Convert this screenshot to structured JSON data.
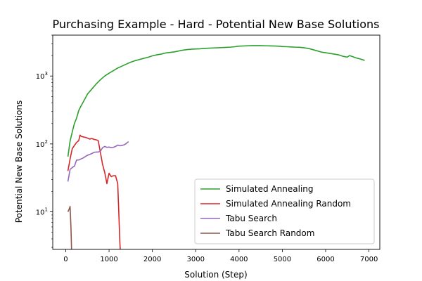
{
  "chart_data": {
    "type": "line",
    "title": "Purchasing Example - Hard - Potential New Base Solutions",
    "xlabel": "Solution (Step)",
    "ylabel": "Potential New Base Solutions",
    "xlim": [
      -300,
      7250
    ],
    "ylim": [
      2.8,
      4000
    ],
    "yscale": "log",
    "grid": false,
    "legend_position": "lower-right",
    "x_ticks": [
      0,
      1000,
      2000,
      3000,
      4000,
      5000,
      6000,
      7000
    ],
    "x_tick_labels": [
      "0",
      "1000",
      "2000",
      "3000",
      "4000",
      "5000",
      "6000",
      "7000"
    ],
    "y_ticks": [
      10,
      100,
      1000
    ],
    "series": [
      {
        "name": "Simulated Annealing",
        "color": "#2ca02c",
        "x": [
          50,
          100,
          150,
          200,
          250,
          300,
          350,
          400,
          450,
          500,
          600,
          700,
          800,
          900,
          1000,
          1100,
          1200,
          1300,
          1400,
          1500,
          1600,
          1700,
          1800,
          1900,
          2000,
          2100,
          2200,
          2300,
          2400,
          2500,
          2600,
          2700,
          2800,
          2900,
          3000,
          3100,
          3200,
          3300,
          3400,
          3500,
          3600,
          3700,
          3800,
          3900,
          4000,
          4100,
          4200,
          4300,
          4400,
          4500,
          4600,
          4700,
          4800,
          4900,
          5000,
          5100,
          5200,
          5300,
          5400,
          5500,
          5600,
          5700,
          5800,
          5900,
          6000,
          6100,
          6200,
          6300,
          6400,
          6500,
          6550,
          6600,
          6700,
          6800,
          6900
        ],
        "values": [
          65,
          110,
          150,
          200,
          240,
          310,
          360,
          410,
          470,
          540,
          640,
          760,
          880,
          1000,
          1100,
          1200,
          1310,
          1400,
          1500,
          1600,
          1680,
          1750,
          1820,
          1890,
          1980,
          2050,
          2100,
          2180,
          2220,
          2260,
          2330,
          2400,
          2450,
          2480,
          2500,
          2520,
          2550,
          2570,
          2590,
          2600,
          2620,
          2640,
          2660,
          2700,
          2750,
          2770,
          2790,
          2800,
          2800,
          2800,
          2790,
          2780,
          2770,
          2750,
          2720,
          2700,
          2680,
          2660,
          2650,
          2600,
          2550,
          2450,
          2350,
          2250,
          2200,
          2150,
          2100,
          2050,
          1950,
          1900,
          2000,
          1950,
          1850,
          1780,
          1700
        ]
      },
      {
        "name": "Simulated Annealing Random",
        "color": "#d62728",
        "x": [
          50,
          100,
          150,
          200,
          250,
          300,
          330,
          350,
          400,
          450,
          500,
          550,
          600,
          650,
          700,
          750,
          800,
          850,
          900,
          950,
          1000,
          1050,
          1100,
          1150,
          1200,
          1230,
          1250,
          1270
        ],
        "values": [
          40,
          60,
          85,
          95,
          105,
          112,
          135,
          130,
          127,
          125,
          122,
          118,
          120,
          117,
          115,
          112,
          75,
          50,
          38,
          26,
          37,
          33,
          34,
          34,
          26,
          8,
          3.5,
          2.0
        ]
      },
      {
        "name": "Tabu Search",
        "color": "#9467bd",
        "x": [
          50,
          100,
          150,
          200,
          250,
          300,
          350,
          400,
          450,
          500,
          550,
          600,
          650,
          700,
          750,
          800,
          850,
          900,
          950,
          1000,
          1050,
          1100,
          1150,
          1200,
          1250,
          1300,
          1350,
          1400,
          1450
        ],
        "values": [
          28,
          42,
          45,
          47,
          58,
          58,
          60,
          62,
          65,
          68,
          70,
          72,
          75,
          76,
          76,
          78,
          88,
          92,
          89,
          90,
          88,
          89,
          92,
          96,
          94,
          95,
          97,
          102,
          108
        ]
      },
      {
        "name": "Tabu Search Random",
        "color": "#8c564b",
        "x": [
          50,
          80,
          100,
          120,
          140
        ],
        "values": [
          10,
          11,
          12,
          6,
          2.0
        ]
      }
    ]
  }
}
